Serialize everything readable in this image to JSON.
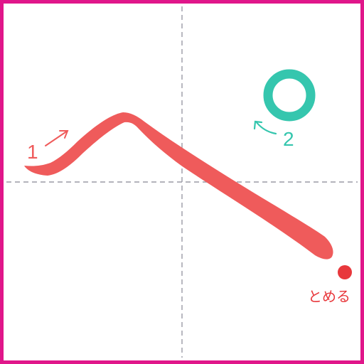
{
  "colors": {
    "frame": "#e0168a",
    "guide": "#9a9aa6",
    "stroke1": "#ef5b5b",
    "stroke2": "#35c6ae",
    "stop_dot": "#e8383c"
  },
  "strokes": [
    {
      "order_label": "1",
      "direction_icon": "arrow-up-right-icon"
    },
    {
      "order_label": "2",
      "direction_icon": "arrow-counterclockwise-icon"
    }
  ],
  "stop_marker": {
    "label": "とめる",
    "icon": "dot-icon"
  }
}
